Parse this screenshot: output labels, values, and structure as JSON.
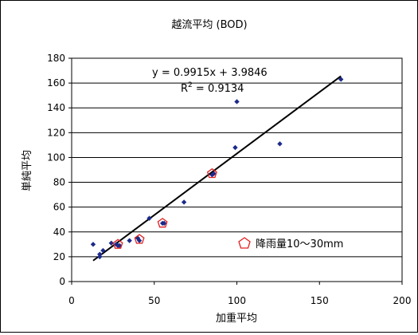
{
  "chart_data": {
    "type": "scatter",
    "title": "越流平均 (BOD)",
    "xlabel": "加重平均",
    "ylabel": "単純平均",
    "xlim": [
      0,
      200
    ],
    "ylim": [
      0,
      180
    ],
    "xticks": [
      0,
      50,
      100,
      150,
      200
    ],
    "yticks": [
      0,
      20,
      40,
      60,
      80,
      100,
      120,
      140,
      160,
      180
    ],
    "grid": "horizontal",
    "series": [
      {
        "marker": "diamond",
        "color": "#1c2a8a",
        "points": [
          [
            13,
            30
          ],
          [
            17,
            20
          ],
          [
            17,
            22
          ],
          [
            19,
            25
          ],
          [
            24,
            31
          ],
          [
            27,
            30
          ],
          [
            28,
            29
          ],
          [
            29,
            29
          ],
          [
            35,
            33
          ],
          [
            40,
            35
          ],
          [
            41,
            33
          ],
          [
            47,
            51
          ],
          [
            55,
            47
          ],
          [
            56,
            47
          ],
          [
            68,
            64
          ],
          [
            85,
            86
          ],
          [
            86,
            87
          ],
          [
            99,
            108
          ],
          [
            100,
            145
          ],
          [
            126,
            111
          ],
          [
            163,
            163
          ]
        ]
      },
      {
        "name": "降雨量10～30mm",
        "marker": "pentagon-open",
        "color": "#e02020",
        "points": [
          [
            28,
            30
          ],
          [
            41,
            34
          ],
          [
            55,
            47
          ],
          [
            85,
            87
          ]
        ]
      }
    ],
    "trendline": {
      "slope": 0.9915,
      "intercept": 3.9846,
      "x_range": [
        13,
        163
      ],
      "equation": "y = 0.9915x + 3.9846",
      "r2_label": "R",
      "r2_sup": "2",
      "r2_value": " = 0.9134"
    },
    "legend": {
      "position": "bottom-right",
      "label": "降雨量10～30mm"
    }
  }
}
